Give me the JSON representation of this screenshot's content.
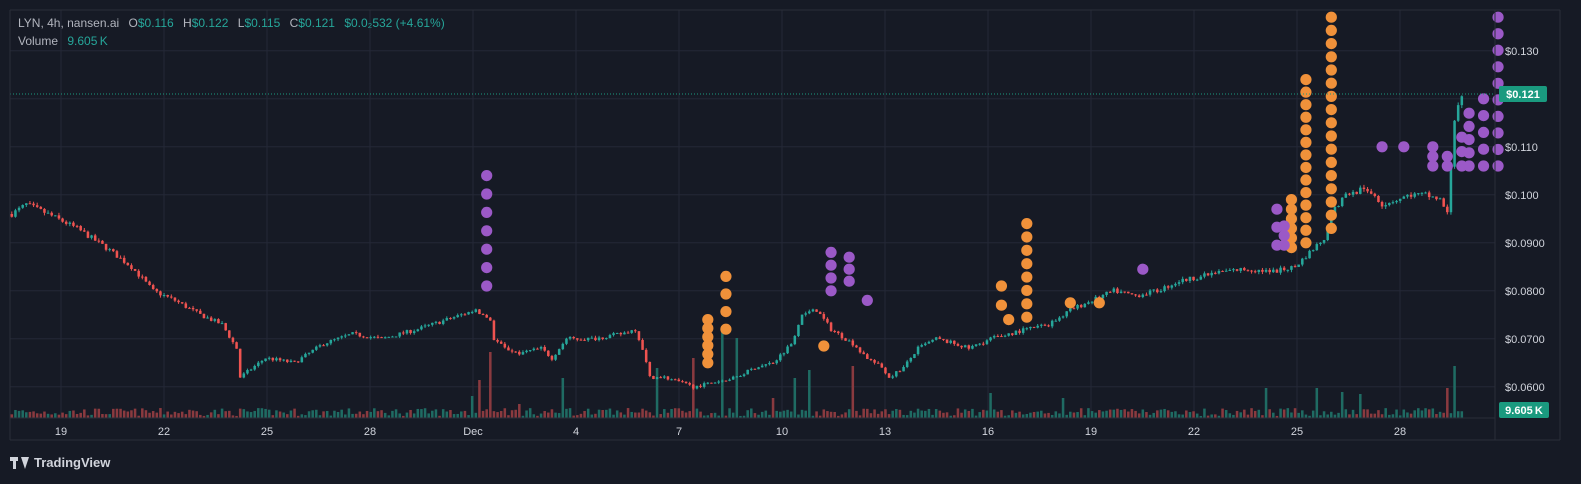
{
  "legend": {
    "symbol": "LYN, 4h, nansen.ai",
    "o_label": "O",
    "o_value": "$0.116",
    "h_label": "H",
    "h_value": "$0.122",
    "l_label": "L",
    "l_value": "$0.115",
    "c_label": "C",
    "c_value": "$0.121",
    "change": "$0.0₂532 (+4.61%)",
    "volume_label": "Volume",
    "volume_value": "9.605 K"
  },
  "branding": {
    "name": "TradingView"
  },
  "colors": {
    "background": "#161a25",
    "grid": "#242836",
    "up": "#26a69a",
    "down": "#ef5350",
    "vol_up": "#1f6b63",
    "vol_down": "#8a3a3f",
    "orange_marker": "#f0913a",
    "purple_marker": "#9b59c7",
    "axis_text": "#d1d4dc",
    "last_price_badge": "#1a9a7f"
  },
  "chart_data": {
    "type": "candlestick",
    "title": "",
    "xlabel": "",
    "ylabel": "",
    "y_axis_ticks": [
      "$0.130",
      "$0.110",
      "$0.100",
      "$0.0900",
      "$0.0800",
      "$0.0700",
      "$0.0600"
    ],
    "x_axis_ticks": [
      "19",
      "22",
      "25",
      "28",
      "Dec",
      "4",
      "7",
      "10",
      "13",
      "16",
      "19",
      "22",
      "25",
      "28"
    ],
    "ylim": [
      0.0535,
      0.1385
    ],
    "grid": true,
    "last_price": 0.121,
    "last_price_label": "$0.121",
    "last_volume_label": "9.605 K",
    "price_path": [
      [
        0,
        0.096
      ],
      [
        4,
        0.098
      ],
      [
        10,
        0.096
      ],
      [
        18,
        0.093
      ],
      [
        26,
        0.089
      ],
      [
        33,
        0.085
      ],
      [
        39,
        0.08
      ],
      [
        45,
        0.078
      ],
      [
        52,
        0.075
      ],
      [
        58,
        0.073
      ],
      [
        62,
        0.068
      ],
      [
        63,
        0.062
      ],
      [
        70,
        0.066
      ],
      [
        78,
        0.065
      ],
      [
        86,
        0.069
      ],
      [
        94,
        0.071
      ],
      [
        102,
        0.07
      ],
      [
        112,
        0.072
      ],
      [
        120,
        0.074
      ],
      [
        128,
        0.076
      ],
      [
        132,
        0.074
      ],
      [
        133,
        0.07
      ],
      [
        136,
        0.068
      ],
      [
        140,
        0.067
      ],
      [
        146,
        0.068
      ],
      [
        149,
        0.066
      ],
      [
        153,
        0.07
      ],
      [
        160,
        0.07
      ],
      [
        168,
        0.071
      ],
      [
        172,
        0.072
      ],
      [
        174,
        0.068
      ],
      [
        176,
        0.062
      ],
      [
        180,
        0.062
      ],
      [
        188,
        0.06
      ],
      [
        194,
        0.061
      ],
      [
        200,
        0.062
      ],
      [
        205,
        0.064
      ],
      [
        210,
        0.065
      ],
      [
        215,
        0.069
      ],
      [
        218,
        0.075
      ],
      [
        222,
        0.076
      ],
      [
        226,
        0.072
      ],
      [
        232,
        0.069
      ],
      [
        236,
        0.066
      ],
      [
        240,
        0.064
      ],
      [
        242,
        0.062
      ],
      [
        246,
        0.064
      ],
      [
        250,
        0.068
      ],
      [
        255,
        0.07
      ],
      [
        260,
        0.069
      ],
      [
        264,
        0.068
      ],
      [
        270,
        0.07
      ],
      [
        275,
        0.071
      ],
      [
        280,
        0.072
      ],
      [
        286,
        0.073
      ],
      [
        292,
        0.076
      ],
      [
        298,
        0.078
      ],
      [
        304,
        0.08
      ],
      [
        310,
        0.079
      ],
      [
        316,
        0.08
      ],
      [
        322,
        0.082
      ],
      [
        328,
        0.083
      ],
      [
        334,
        0.084
      ],
      [
        340,
        0.0845
      ],
      [
        348,
        0.084
      ],
      [
        354,
        0.085
      ],
      [
        358,
        0.088
      ],
      [
        362,
        0.091
      ],
      [
        364,
        0.096
      ],
      [
        368,
        0.1
      ],
      [
        372,
        0.101
      ],
      [
        376,
        0.1
      ],
      [
        378,
        0.098
      ],
      [
        382,
        0.099
      ],
      [
        386,
        0.1
      ],
      [
        390,
        0.1
      ],
      [
        394,
        0.099
      ],
      [
        396,
        0.096
      ],
      [
        398,
        0.116
      ],
      [
        400,
        0.121
      ]
    ],
    "candle_count": 401,
    "orange_marker_columns": [
      [
        192,
        0.065,
        0.074,
        6
      ],
      [
        197,
        0.072,
        0.083,
        4
      ],
      [
        224,
        0.0685,
        0.0685,
        1
      ],
      [
        273,
        0.077,
        0.081,
        2
      ],
      [
        275,
        0.074,
        0.074,
        1
      ],
      [
        280,
        0.0745,
        0.094,
        8
      ],
      [
        292,
        0.0775,
        0.0775,
        1
      ],
      [
        300,
        0.0775,
        0.0775,
        1
      ],
      [
        353,
        0.089,
        0.099,
        6
      ],
      [
        357,
        0.09,
        0.124,
        14
      ],
      [
        364,
        0.093,
        0.137,
        17
      ]
    ],
    "purple_marker_columns": [
      [
        131,
        0.081,
        0.104,
        7
      ],
      [
        226,
        0.08,
        0.088,
        4
      ],
      [
        231,
        0.082,
        0.087,
        3
      ],
      [
        236,
        0.078,
        0.078,
        1
      ],
      [
        312,
        0.0845,
        0.0845,
        1
      ],
      [
        349,
        0.0895,
        0.097,
        3
      ],
      [
        351,
        0.0895,
        0.0935,
        3
      ],
      [
        378,
        0.11,
        0.11,
        1
      ],
      [
        384,
        0.11,
        0.11,
        1
      ],
      [
        392,
        0.106,
        0.11,
        3
      ],
      [
        396,
        0.106,
        0.108,
        2
      ],
      [
        400,
        0.106,
        0.112,
        3
      ],
      [
        402,
        0.106,
        0.117,
        5
      ],
      [
        406,
        0.106,
        0.12,
        5
      ],
      [
        410,
        0.106,
        0.137,
        10
      ]
    ],
    "volume_spikes": [
      [
        127,
        22
      ],
      [
        129,
        38
      ],
      [
        132,
        66
      ],
      [
        140,
        14
      ],
      [
        152,
        40
      ],
      [
        178,
        50
      ],
      [
        188,
        60
      ],
      [
        196,
        92
      ],
      [
        200,
        80
      ],
      [
        210,
        20
      ],
      [
        216,
        40
      ],
      [
        220,
        48
      ],
      [
        232,
        52
      ],
      [
        270,
        25
      ],
      [
        290,
        20
      ],
      [
        346,
        30
      ],
      [
        360,
        30
      ],
      [
        367,
        26
      ],
      [
        372,
        24
      ],
      [
        396,
        30
      ],
      [
        398,
        52
      ]
    ]
  }
}
